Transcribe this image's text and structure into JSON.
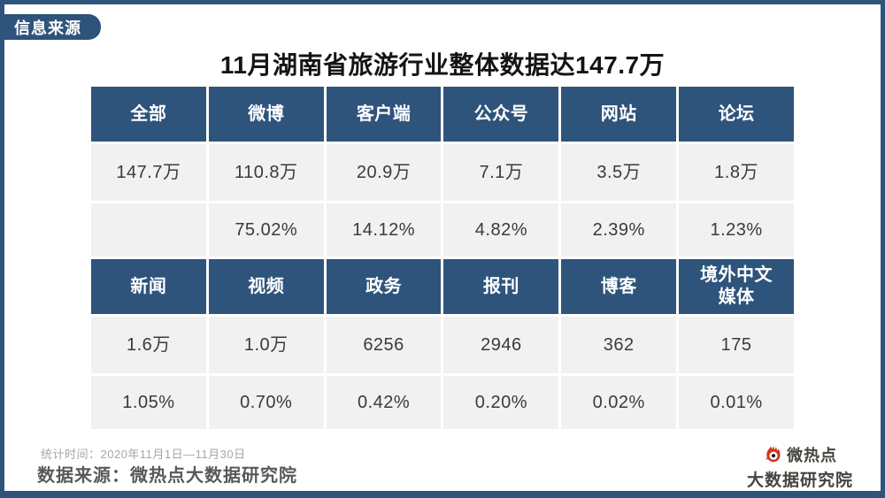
{
  "tab": {
    "label": "信息来源"
  },
  "title": "11月湖南省旅游行业整体数据达147.7万",
  "table": {
    "sections": [
      {
        "headers": [
          "全部",
          "微博",
          "客户端",
          "公众号",
          "网站",
          "论坛"
        ],
        "values": [
          "147.7万",
          "110.8万",
          "20.9万",
          "7.1万",
          "3.5万",
          "1.8万"
        ],
        "shares": [
          "",
          "75.02%",
          "14.12%",
          "4.82%",
          "2.39%",
          "1.23%"
        ]
      },
      {
        "headers": [
          "新闻",
          "视频",
          "政务",
          "报刊",
          "博客",
          "境外中文媒体"
        ],
        "values": [
          "1.6万",
          "1.0万",
          "6256",
          "2946",
          "362",
          "175"
        ],
        "shares": [
          "1.05%",
          "0.70%",
          "0.42%",
          "0.20%",
          "0.02%",
          "0.01%"
        ]
      }
    ]
  },
  "footer": {
    "stats_time": "统计时间：2020年11月1日—11月30日",
    "data_source": "数据来源：微热点大数据研究院"
  },
  "logo": {
    "icon": "flame-eye-icon",
    "brand": "微热点",
    "subtitle": "大数据研究院"
  },
  "colors": {
    "accent": "#2E547C",
    "row": "#F1F1F2",
    "titletext": "#141414",
    "celltext": "#3A3A3A",
    "muted": "#A6A6A6",
    "sourcetext": "#595959",
    "logored": "#D2321E",
    "logotext": "#47443E"
  },
  "chart_data": {
    "type": "table",
    "title": "11月湖南省旅游行业整体数据达147.7万",
    "categories": [
      "全部",
      "微博",
      "客户端",
      "公众号",
      "网站",
      "论坛",
      "新闻",
      "视频",
      "政务",
      "报刊",
      "博客",
      "境外中文媒体"
    ],
    "counts": [
      "147.7万",
      "110.8万",
      "20.9万",
      "7.1万",
      "3.5万",
      "1.8万",
      "1.6万",
      "1.0万",
      "6256",
      "2946",
      "362",
      "175"
    ],
    "shares": [
      null,
      "75.02%",
      "14.12%",
      "4.82%",
      "2.39%",
      "1.23%",
      "1.05%",
      "0.70%",
      "0.42%",
      "0.20%",
      "0.02%",
      "0.01%"
    ],
    "stats_period": "2020年11月1日—11月30日",
    "source": "微热点大数据研究院"
  }
}
